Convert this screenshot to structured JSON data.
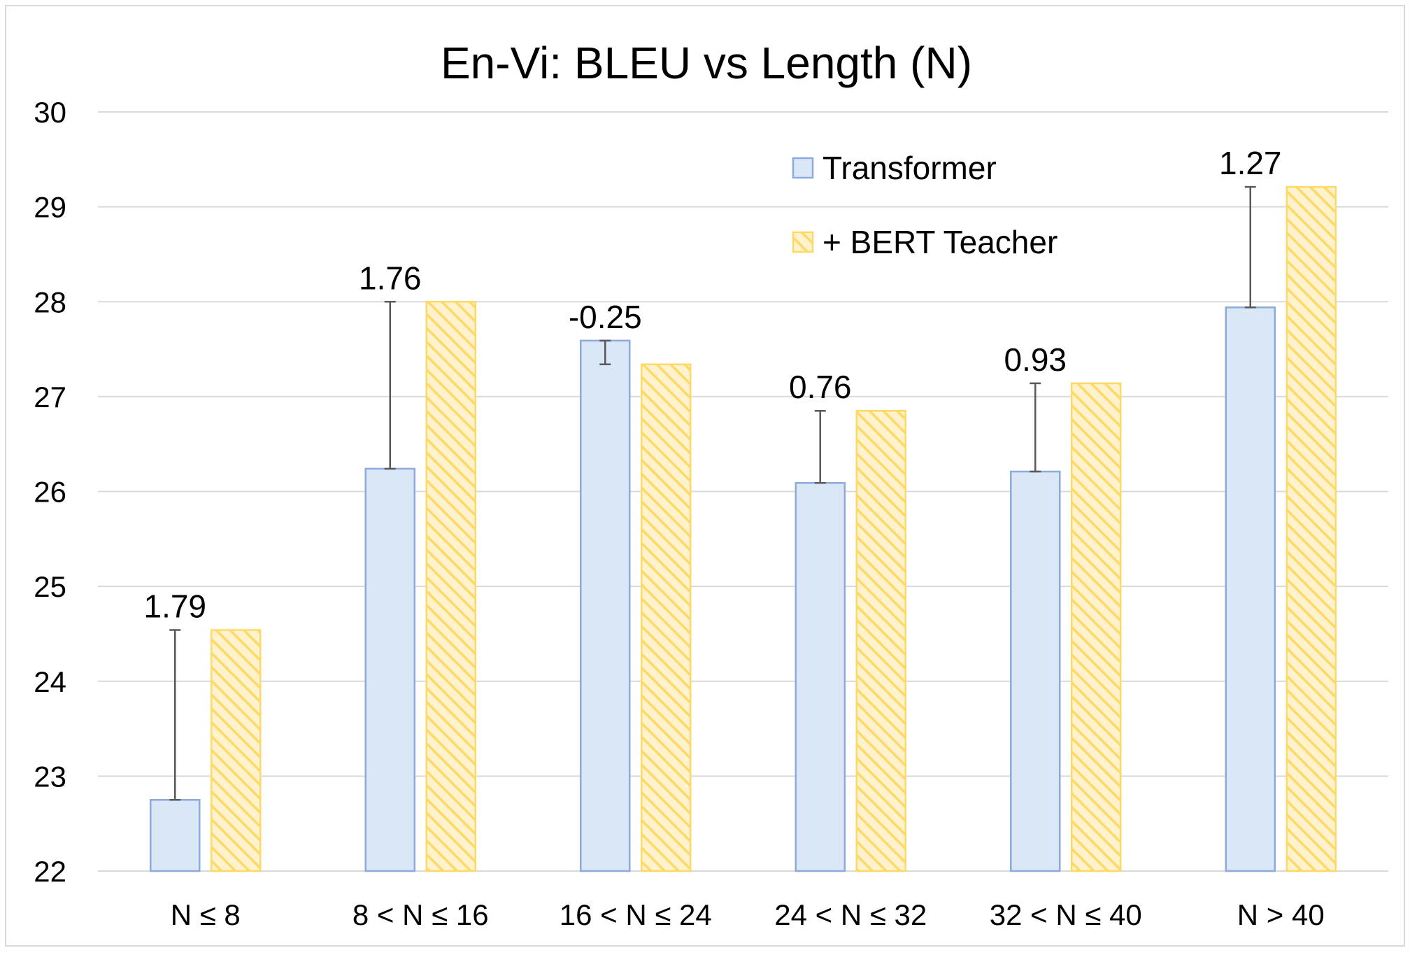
{
  "chart_data": {
    "type": "bar",
    "title": "En-Vi: BLEU vs Length (N)",
    "xlabel": "",
    "ylabel": "",
    "ylim": [
      22,
      30
    ],
    "yticks": [
      22,
      23,
      24,
      25,
      26,
      27,
      28,
      29,
      30
    ],
    "grid": true,
    "legend_position": "top-right",
    "categories": [
      "N ≤ 8",
      "8 < N ≤ 16",
      "16 < N ≤ 24",
      "24 < N ≤ 32",
      "32 < N ≤ 40",
      "N > 40"
    ],
    "series": [
      {
        "name": "Transformer",
        "values": [
          22.75,
          26.24,
          27.59,
          26.09,
          26.21,
          27.94
        ],
        "color": "#dae7f6",
        "edge": "#8eaadc"
      },
      {
        "name": "+ BERT Teacher",
        "values": [
          24.54,
          28.0,
          27.34,
          26.85,
          27.14,
          29.21
        ],
        "color": "#fff2cc",
        "edge": "#ffd966",
        "pattern": "hatched"
      }
    ],
    "annotations": [
      "1.79",
      "1.76",
      "-0.25",
      "0.76",
      "0.93",
      "1.27"
    ]
  }
}
